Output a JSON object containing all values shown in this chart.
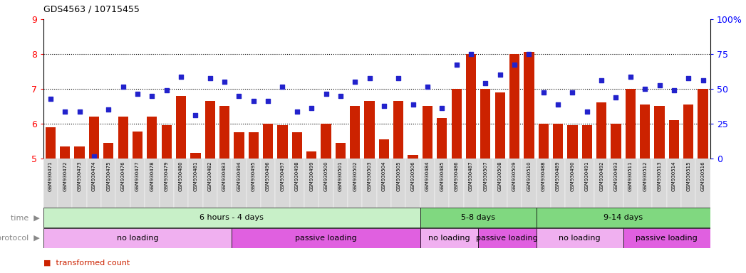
{
  "title": "GDS4563 / 10715455",
  "ylim": [
    5,
    9
  ],
  "yticks": [
    5,
    6,
    7,
    8,
    9
  ],
  "right_yticks": [
    0,
    25,
    50,
    75,
    100
  ],
  "samples": [
    "GSM930471",
    "GSM930472",
    "GSM930473",
    "GSM930474",
    "GSM930475",
    "GSM930476",
    "GSM930477",
    "GSM930478",
    "GSM930479",
    "GSM930480",
    "GSM930481",
    "GSM930482",
    "GSM930483",
    "GSM930494",
    "GSM930495",
    "GSM930496",
    "GSM930497",
    "GSM930498",
    "GSM930499",
    "GSM930500",
    "GSM930501",
    "GSM930502",
    "GSM930503",
    "GSM930504",
    "GSM930505",
    "GSM930506",
    "GSM930484",
    "GSM930485",
    "GSM930486",
    "GSM930487",
    "GSM930507",
    "GSM930508",
    "GSM930509",
    "GSM930510",
    "GSM930488",
    "GSM930489",
    "GSM930490",
    "GSM930491",
    "GSM930492",
    "GSM930493",
    "GSM930511",
    "GSM930512",
    "GSM930513",
    "GSM930514",
    "GSM930515",
    "GSM930516"
  ],
  "bar_values": [
    5.9,
    5.35,
    5.35,
    6.2,
    5.45,
    6.2,
    5.78,
    6.2,
    5.95,
    6.8,
    5.15,
    6.65,
    6.5,
    5.75,
    5.75,
    6.0,
    5.95,
    5.75,
    5.2,
    6.0,
    5.45,
    6.5,
    6.65,
    5.55,
    6.65,
    5.1,
    6.5,
    6.15,
    7.0,
    8.0,
    7.0,
    6.9,
    8.0,
    8.05,
    6.0,
    6.0,
    5.95,
    5.95,
    6.6,
    6.0,
    7.0,
    6.55,
    6.5,
    6.1,
    6.55,
    7.0
  ],
  "dot_values": [
    6.7,
    6.35,
    6.35,
    5.05,
    6.4,
    7.05,
    6.85,
    6.8,
    6.95,
    7.35,
    6.25,
    7.3,
    7.2,
    6.8,
    6.65,
    6.65,
    7.05,
    6.35,
    6.45,
    6.85,
    6.8,
    7.2,
    7.3,
    6.5,
    7.3,
    6.55,
    7.05,
    6.45,
    7.7,
    8.0,
    7.15,
    7.4,
    7.7,
    8.0,
    6.9,
    6.55,
    6.9,
    6.35,
    7.25,
    6.75,
    7.35,
    7.0,
    7.1,
    6.95,
    7.3,
    7.25
  ],
  "time_groups": [
    {
      "label": "6 hours - 4 days",
      "start": 0,
      "end": 26,
      "color": "#c8f0c8"
    },
    {
      "label": "5-8 days",
      "start": 26,
      "end": 34,
      "color": "#80d880"
    },
    {
      "label": "9-14 days",
      "start": 34,
      "end": 46,
      "color": "#80d880"
    }
  ],
  "protocol_groups": [
    {
      "label": "no loading",
      "start": 0,
      "end": 13,
      "color": "#f0b0f0"
    },
    {
      "label": "passive loading",
      "start": 13,
      "end": 26,
      "color": "#e060e0"
    },
    {
      "label": "no loading",
      "start": 26,
      "end": 30,
      "color": "#f0b0f0"
    },
    {
      "label": "passive loading",
      "start": 30,
      "end": 34,
      "color": "#e060e0"
    },
    {
      "label": "no loading",
      "start": 34,
      "end": 40,
      "color": "#f0b0f0"
    },
    {
      "label": "passive loading",
      "start": 40,
      "end": 46,
      "color": "#e060e0"
    }
  ],
  "bar_color": "#cc2200",
  "dot_color": "#2222cc",
  "xtick_bg": "#d8d8d8",
  "left_label_color": "#888888"
}
